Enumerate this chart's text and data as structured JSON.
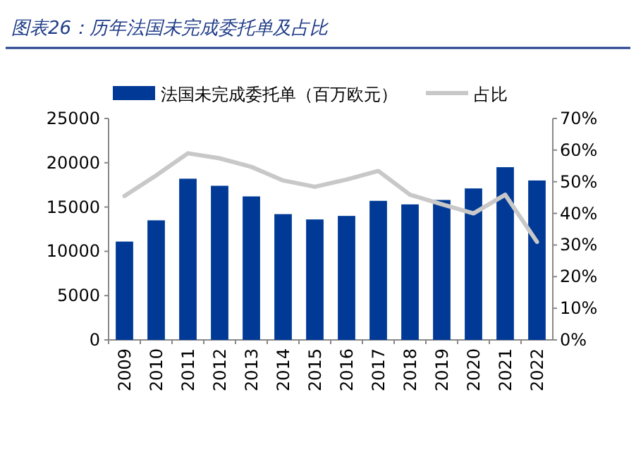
{
  "chart_data": {
    "type": "bar",
    "title": "图表26：历年法国未完成委托单及占比",
    "categories": [
      "2009",
      "2010",
      "2011",
      "2012",
      "2013",
      "2014",
      "2015",
      "2016",
      "2017",
      "2018",
      "2019",
      "2020",
      "2021",
      "2022"
    ],
    "series": [
      {
        "name": "法国未完成委托单（百万欧元）",
        "color": "#003a96",
        "values": [
          11100,
          13500,
          18200,
          17400,
          16200,
          14200,
          13600,
          14000,
          15700,
          15300,
          15800,
          17100,
          19500,
          18000
        ]
      },
      {
        "name": "占比",
        "color": "#c8c8c8",
        "type": "line",
        "axis": "y2",
        "values": [
          45.5,
          52,
          59,
          57.4,
          54.7,
          50.4,
          48.4,
          50.7,
          53.4,
          45.9,
          42.9,
          40,
          45.9,
          31
        ]
      }
    ],
    "ylim": [
      0,
      25000
    ],
    "yticks": [
      0,
      5000,
      10000,
      15000,
      20000,
      25000
    ],
    "y2lim": [
      0,
      70
    ],
    "y2ticks": [
      {
        "value": 0,
        "label": "0%"
      },
      {
        "value": 10,
        "label": "10%"
      },
      {
        "value": 20,
        "label": "20%"
      },
      {
        "value": 30,
        "label": "30%"
      },
      {
        "value": 40,
        "label": "40%"
      },
      {
        "value": 50,
        "label": "50%"
      },
      {
        "value": 60,
        "label": "60%"
      },
      {
        "value": 70,
        "label": "70%"
      }
    ],
    "legend": "top",
    "grid": false,
    "marker": "none",
    "line_style": "solid"
  }
}
